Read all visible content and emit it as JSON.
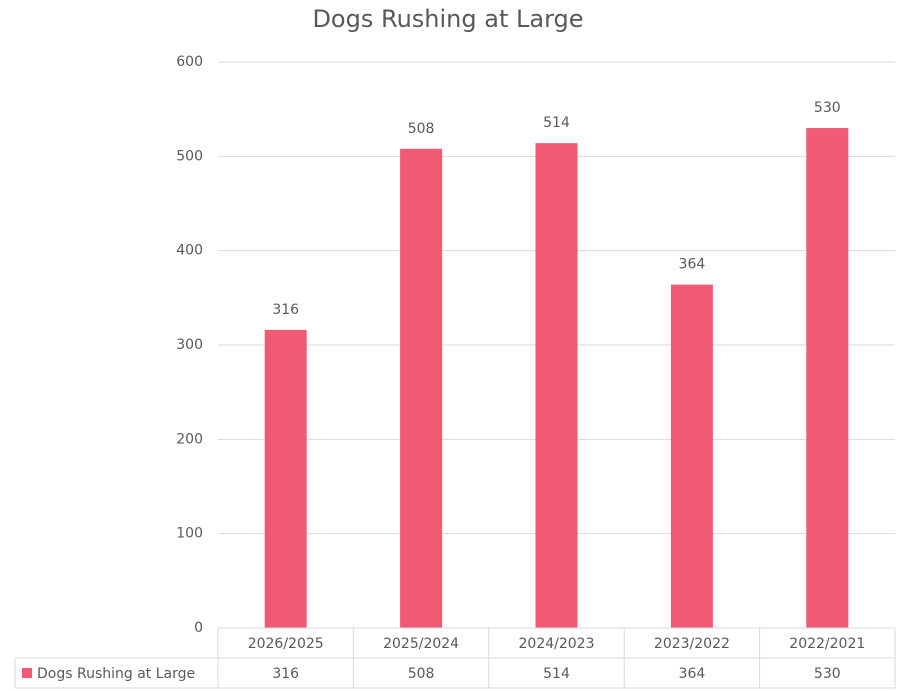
{
  "chart_data": {
    "type": "bar",
    "title": "Dogs Rushing at Large",
    "categories": [
      "2026/2025",
      "2025/2024",
      "2024/2023",
      "2023/2022",
      "2022/2021"
    ],
    "series": [
      {
        "name": "Dogs Rushing at Large",
        "color": "#f05a72",
        "values": [
          316,
          508,
          514,
          364,
          530
        ]
      }
    ],
    "ylim": [
      0,
      600
    ],
    "yticks": [
      0,
      100,
      200,
      300,
      400,
      500,
      600
    ],
    "grid": true,
    "data_table": true
  }
}
